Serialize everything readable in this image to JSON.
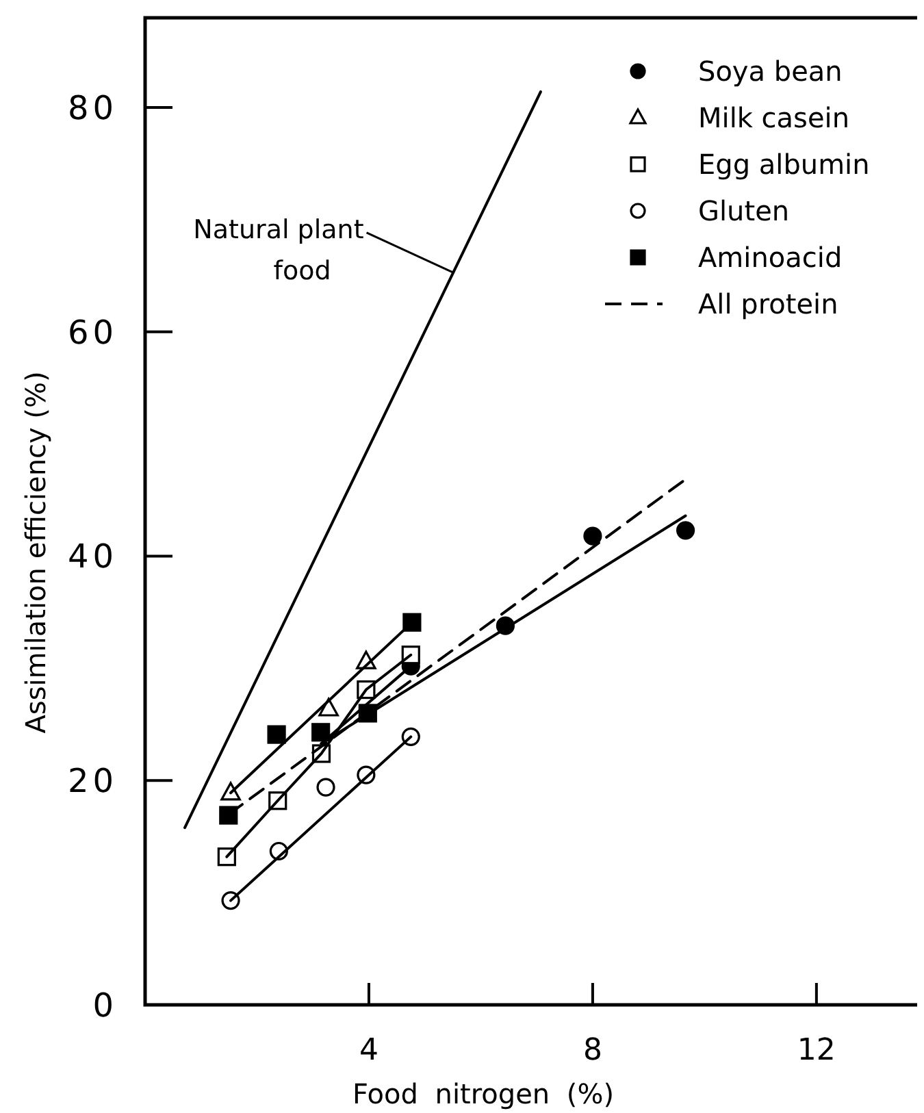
{
  "chart_data": {
    "type": "scatter",
    "xlabel": "Food nitrogen (%)",
    "ylabel": "Assimilation efficiency (%)",
    "xlim": [
      0,
      13.8
    ],
    "ylim": [
      0,
      88
    ],
    "xticks": [
      4,
      8,
      12
    ],
    "yticks": [
      0,
      20,
      40,
      60,
      80
    ],
    "grid": false,
    "legend": "top right",
    "annotations": [
      {
        "text": "Natural plant\nfood",
        "x": 5.5,
        "y": 65.3
      }
    ],
    "series": [
      {
        "name": "Soya bean",
        "marker": "circle",
        "color": "#000000",
        "x": [
          4.75,
          6.44,
          8.0,
          9.66
        ],
        "values": [
          30.2,
          33.8,
          41.8,
          42.3
        ]
      },
      {
        "name": "Milk casein",
        "marker": "triangle-open",
        "color": "#000000",
        "x": [
          1.53,
          3.28,
          3.95
        ],
        "values": [
          18.9,
          26.4,
          30.6
        ]
      },
      {
        "name": "Egg albumin",
        "marker": "square-open",
        "color": "#000000",
        "x": [
          1.46,
          2.37,
          3.15,
          3.95,
          4.75
        ],
        "values": [
          13.2,
          18.2,
          22.4,
          28.1,
          31.2
        ]
      },
      {
        "name": "Gluten",
        "marker": "circle-open",
        "color": "#000000",
        "x": [
          1.53,
          2.39,
          3.23,
          3.95,
          4.75
        ],
        "values": [
          9.3,
          13.7,
          19.4,
          20.5,
          23.9
        ]
      },
      {
        "name": "Aminoacid",
        "marker": "square",
        "color": "#000000",
        "x": [
          1.49,
          2.35,
          3.14,
          3.98,
          4.77
        ],
        "values": [
          16.9,
          24.1,
          24.3,
          26.0,
          34.1
        ]
      },
      {
        "name": "All protein",
        "type": "line",
        "line_style": "dashed",
        "color": "#000000",
        "x": [
          1.5,
          9.7
        ],
        "values": [
          17.0,
          47.0
        ]
      },
      {
        "type": "line",
        "line_style": "solid",
        "color": "#000000",
        "x": [
          0.71,
          7.07
        ],
        "values": [
          15.8,
          81.4
        ]
      },
      {
        "type": "line",
        "line_style": "solid",
        "color": "#000000",
        "x": [
          3.15,
          9.66
        ],
        "values": [
          23.3,
          43.6
        ]
      },
      {
        "type": "line",
        "line_style": "solid",
        "color": "#000000",
        "x": [
          1.53,
          4.75
        ],
        "values": [
          18.9,
          34.0
        ]
      },
      {
        "type": "line",
        "line_style": "solid",
        "color": "#000000",
        "x": [
          1.46,
          2.37,
          3.15,
          3.95,
          4.75
        ],
        "values": [
          13.2,
          18.2,
          22.4,
          28.1,
          31.2
        ]
      },
      {
        "type": "line",
        "line_style": "solid",
        "color": "#000000",
        "x": [
          1.53,
          4.75
        ],
        "values": [
          9.3,
          23.9
        ]
      },
      {
        "type": "line",
        "line_style": "solid",
        "color": "#000000",
        "x": [
          3.15,
          4.75
        ],
        "values": [
          23.3,
          30.2
        ]
      }
    ]
  }
}
